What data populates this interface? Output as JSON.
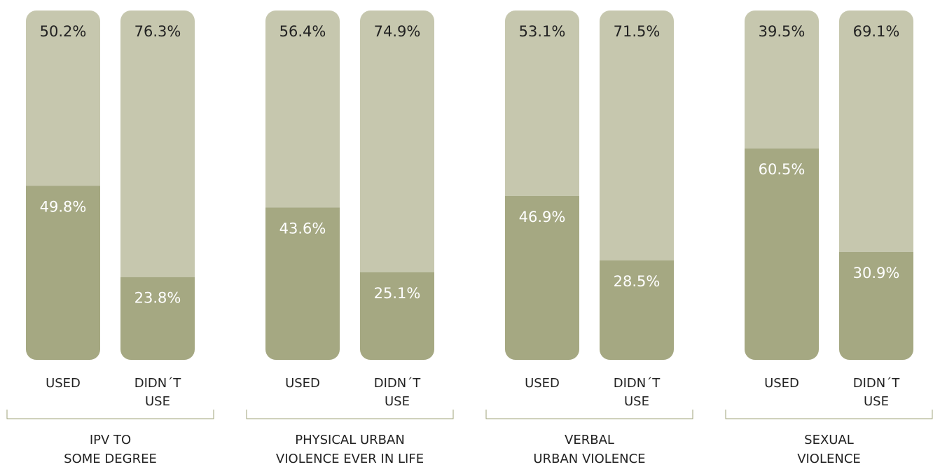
{
  "chart_data": {
    "type": "bar",
    "stacked": true,
    "value_unit": "%",
    "ylim": [
      0,
      100
    ],
    "colors": {
      "top_segment": "#c6c7ae",
      "bottom_segment": "#a5a882"
    },
    "groups": [
      {
        "label_lines": [
          "IPV TO",
          "SOME DEGREE"
        ],
        "bars": [
          {
            "label_lines": [
              "USED"
            ],
            "top_label": "50.2%",
            "bottom_label": "49.8%",
            "top": 50.2,
            "bottom": 49.8
          },
          {
            "label_lines": [
              "DIDN´T",
              "USE"
            ],
            "top_label": "76.3%",
            "bottom_label": "23.8%",
            "top": 76.3,
            "bottom": 23.8
          }
        ]
      },
      {
        "label_lines": [
          "PHYSICAL URBAN",
          "VIOLENCE EVER IN LIFE"
        ],
        "bars": [
          {
            "label_lines": [
              "USED"
            ],
            "top_label": "56.4%",
            "bottom_label": "43.6%",
            "top": 56.4,
            "bottom": 43.6
          },
          {
            "label_lines": [
              "DIDN´T",
              "USE"
            ],
            "top_label": "74.9%",
            "bottom_label": "25.1%",
            "top": 74.9,
            "bottom": 25.1
          }
        ]
      },
      {
        "label_lines": [
          "VERBAL",
          "URBAN VIOLENCE"
        ],
        "bars": [
          {
            "label_lines": [
              "USED"
            ],
            "top_label": "53.1%",
            "bottom_label": "46.9%",
            "top": 53.1,
            "bottom": 46.9
          },
          {
            "label_lines": [
              "DIDN´T",
              "USE"
            ],
            "top_label": "71.5%",
            "bottom_label": "28.5%",
            "top": 71.5,
            "bottom": 28.5
          }
        ]
      },
      {
        "label_lines": [
          "SEXUAL",
          "VIOLENCE"
        ],
        "bars": [
          {
            "label_lines": [
              "USED"
            ],
            "top_label": "39.5%",
            "bottom_label": "60.5%",
            "top": 39.5,
            "bottom": 60.5
          },
          {
            "label_lines": [
              "DIDN´T",
              "USE"
            ],
            "top_label": "69.1%",
            "bottom_label": "30.9%",
            "top": 69.1,
            "bottom": 30.9
          }
        ]
      }
    ]
  }
}
